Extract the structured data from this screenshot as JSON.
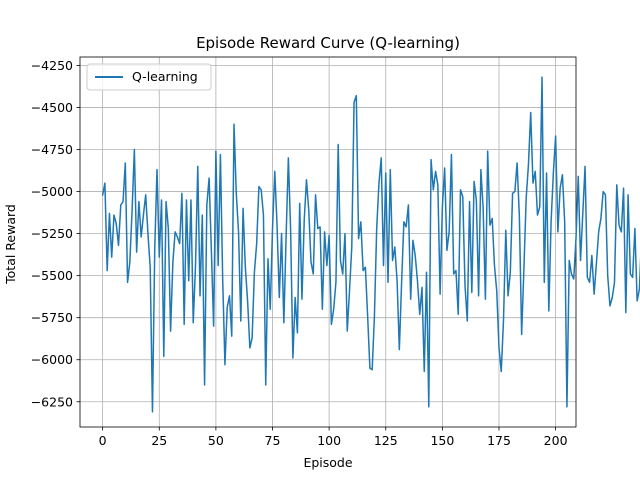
{
  "chart_data": {
    "type": "line",
    "title": "Episode Reward Curve (Q-learning)",
    "xlabel": "Episode",
    "ylabel": "Total Reward",
    "xlim": [
      -10,
      209
    ],
    "ylim": [
      -6400,
      -4200
    ],
    "xticks": [
      0,
      25,
      50,
      75,
      100,
      125,
      150,
      175,
      200
    ],
    "yticks": [
      -6250,
      -6000,
      -5750,
      -5500,
      -5250,
      -5000,
      -4750,
      -4500,
      -4250
    ],
    "grid": true,
    "legend": {
      "placement": "upper-left",
      "entries": [
        "Q-learning"
      ]
    },
    "colors": {
      "series": "#1f77b4"
    },
    "series": [
      {
        "name": "Q-learning",
        "x_start": 0,
        "x_step": 1,
        "values": [
          -5020,
          -4950,
          -5470,
          -5130,
          -5390,
          -5140,
          -5190,
          -5320,
          -5080,
          -5060,
          -4830,
          -5540,
          -5420,
          -5110,
          -4750,
          -5360,
          -5060,
          -5270,
          -5140,
          -5020,
          -5250,
          -5450,
          -6310,
          -5340,
          -4870,
          -5390,
          -5050,
          -5980,
          -5060,
          -5220,
          -5830,
          -5420,
          -5240,
          -5270,
          -5310,
          -5010,
          -5790,
          -5050,
          -5530,
          -5050,
          -5780,
          -5440,
          -4850,
          -5620,
          -5140,
          -6150,
          -5080,
          -4920,
          -5350,
          -5800,
          -4760,
          -5440,
          -4780,
          -5520,
          -6030,
          -5690,
          -5620,
          -5860,
          -4600,
          -5010,
          -5240,
          -5770,
          -5100,
          -5450,
          -5650,
          -5930,
          -5870,
          -5480,
          -5310,
          -4970,
          -4990,
          -5140,
          -6150,
          -5400,
          -5700,
          -5220,
          -4880,
          -5200,
          -5630,
          -5250,
          -5780,
          -5270,
          -4800,
          -5230,
          -5990,
          -5630,
          -5840,
          -5070,
          -5640,
          -5170,
          -4930,
          -5110,
          -5420,
          -5490,
          -5020,
          -5220,
          -5210,
          -5700,
          -5240,
          -5440,
          -5260,
          -5790,
          -5700,
          -5540,
          -4720,
          -5410,
          -5490,
          -5250,
          -5830,
          -5590,
          -5330,
          -4470,
          -4430,
          -5280,
          -5180,
          -5470,
          -5450,
          -5740,
          -6050,
          -6060,
          -5740,
          -5220,
          -4950,
          -4800,
          -5440,
          -4890,
          -5540,
          -4870,
          -5410,
          -5330,
          -5530,
          -5940,
          -5540,
          -5180,
          -5210,
          -5080,
          -5640,
          -5290,
          -5380,
          -5530,
          -5730,
          -5570,
          -6070,
          -5480,
          -6280,
          -4810,
          -4990,
          -4880,
          -4960,
          -5610,
          -5090,
          -4860,
          -5350,
          -5240,
          -4780,
          -5490,
          -5470,
          -5730,
          -4990,
          -5030,
          -5560,
          -5770,
          -5060,
          -5600,
          -4940,
          -5050,
          -5620,
          -4870,
          -5100,
          -5640,
          -4760,
          -5200,
          -5160,
          -5440,
          -5590,
          -5930,
          -6070,
          -5760,
          -5230,
          -5620,
          -5480,
          -5010,
          -5000,
          -4830,
          -5150,
          -5850,
          -5460,
          -5040,
          -4840,
          -4530,
          -4950,
          -4880,
          -5140,
          -5090,
          -4320,
          -5540,
          -4890,
          -5710,
          -5180,
          -4890,
          -4670,
          -5240,
          -4980,
          -4900,
          -5180,
          -6280,
          -5410,
          -5490,
          -5520,
          -5280,
          -4910,
          -5410,
          -5130,
          -4850,
          -5510,
          -5540,
          -5380,
          -5610,
          -5430,
          -5240,
          -5160,
          -5000,
          -5020,
          -5500,
          -5680,
          -5630,
          -5540,
          -4960,
          -5200,
          -5240,
          -4980,
          -5720,
          -5020,
          -5490,
          -5510,
          -5220,
          -5650,
          -5580,
          -5250,
          -5420,
          -5000,
          -5460,
          -4720
        ]
      }
    ]
  }
}
